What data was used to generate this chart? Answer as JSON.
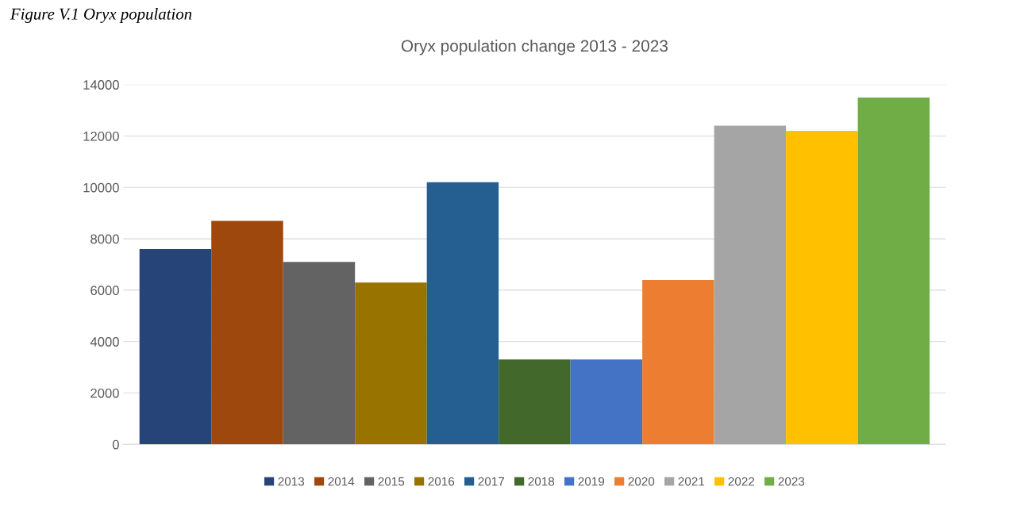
{
  "chart_data": {
    "type": "bar",
    "title": "Oryx population change 2013 - 2023",
    "annotations": [
      "Figure V.1 Oryx population"
    ],
    "categories": [
      null
    ],
    "series": [
      {
        "name": "2013",
        "color": "#264478",
        "values": [
          7600
        ]
      },
      {
        "name": "2014",
        "color": "#9e480e",
        "values": [
          8700
        ]
      },
      {
        "name": "2015",
        "color": "#636363",
        "values": [
          7100
        ]
      },
      {
        "name": "2016",
        "color": "#997300",
        "values": [
          6300
        ]
      },
      {
        "name": "2017",
        "color": "#255e91",
        "values": [
          10200
        ]
      },
      {
        "name": "2018",
        "color": "#43682b",
        "values": [
          3300
        ]
      },
      {
        "name": "2019",
        "color": "#4472c4",
        "values": [
          3300
        ]
      },
      {
        "name": "2020",
        "color": "#ed7d31",
        "values": [
          6400
        ]
      },
      {
        "name": "2021",
        "color": "#a5a5a5",
        "values": [
          12400
        ]
      },
      {
        "name": "2022",
        "color": "#ffc000",
        "values": [
          12200
        ]
      },
      {
        "name": "2023",
        "color": "#70ad47",
        "values": [
          13500
        ]
      }
    ],
    "ylim": [
      0,
      14000
    ],
    "yticks": [
      0,
      2000,
      4000,
      6000,
      8000,
      10000,
      12000,
      14000
    ],
    "grid": "y",
    "legend": "bottom",
    "tick_labels": "y"
  }
}
